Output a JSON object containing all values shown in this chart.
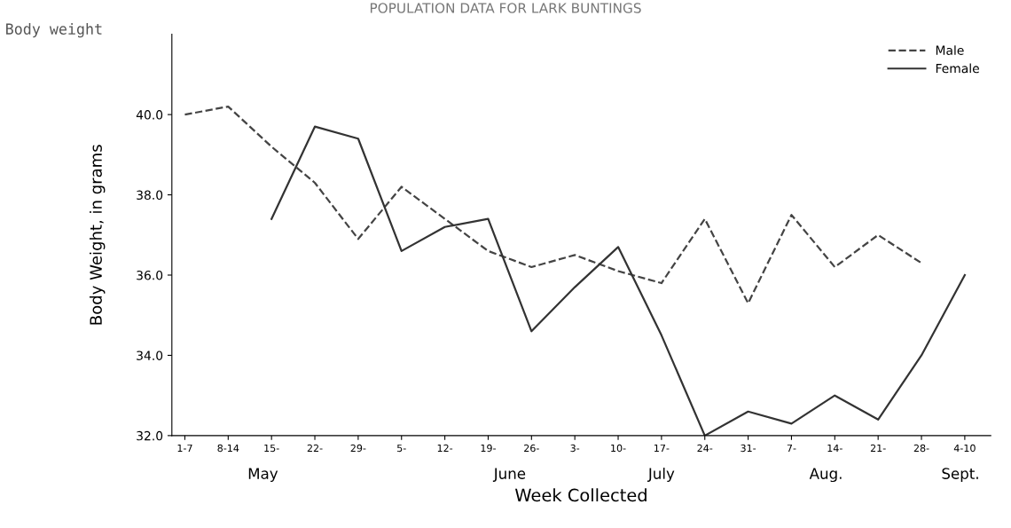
{
  "chart_data": {
    "type": "line",
    "title": "POPULATION DATA FOR LARK BUNTINGS",
    "xlabel": "Week Collected",
    "ylabel": "Body Weight, in grams",
    "annotations": [
      "Body weight",
      "May",
      "June",
      "July",
      "Aug.",
      "Sept."
    ],
    "categories": [
      "1-7",
      "8-14",
      "15-",
      "22-",
      "29-",
      "5-",
      "12-",
      "19-",
      "26-",
      "3-",
      "10-",
      "17-",
      "24-",
      "31-",
      "7-",
      "14-",
      "21-",
      "28-",
      "4-10"
    ],
    "series": [
      {
        "name": "Male",
        "color": "#444444",
        "line_style": "dashed",
        "values": [
          40.0,
          40.2,
          39.2,
          38.3,
          36.9,
          38.2,
          37.4,
          36.6,
          36.2,
          36.5,
          36.1,
          35.8,
          37.4,
          35.3,
          37.5,
          36.2,
          37.0,
          36.3,
          null
        ]
      },
      {
        "name": "Female",
        "color": "#333333",
        "line_style": "solid",
        "values": [
          null,
          null,
          37.4,
          39.7,
          39.4,
          36.6,
          37.2,
          37.4,
          34.6,
          35.7,
          36.7,
          34.5,
          32.0,
          32.6,
          32.3,
          33.0,
          32.4,
          34.0,
          36.0
        ]
      }
    ],
    "ylim": [
      32,
      42
    ],
    "yticks": [
      {
        "value": 32,
        "label": "32.0"
      },
      {
        "value": 34,
        "label": "34.0"
      },
      {
        "value": 36,
        "label": "36.0"
      },
      {
        "value": 38,
        "label": "38.0"
      },
      {
        "value": 40,
        "label": "40.0"
      }
    ],
    "grid": false,
    "legend": "top right",
    "marker": "none"
  }
}
